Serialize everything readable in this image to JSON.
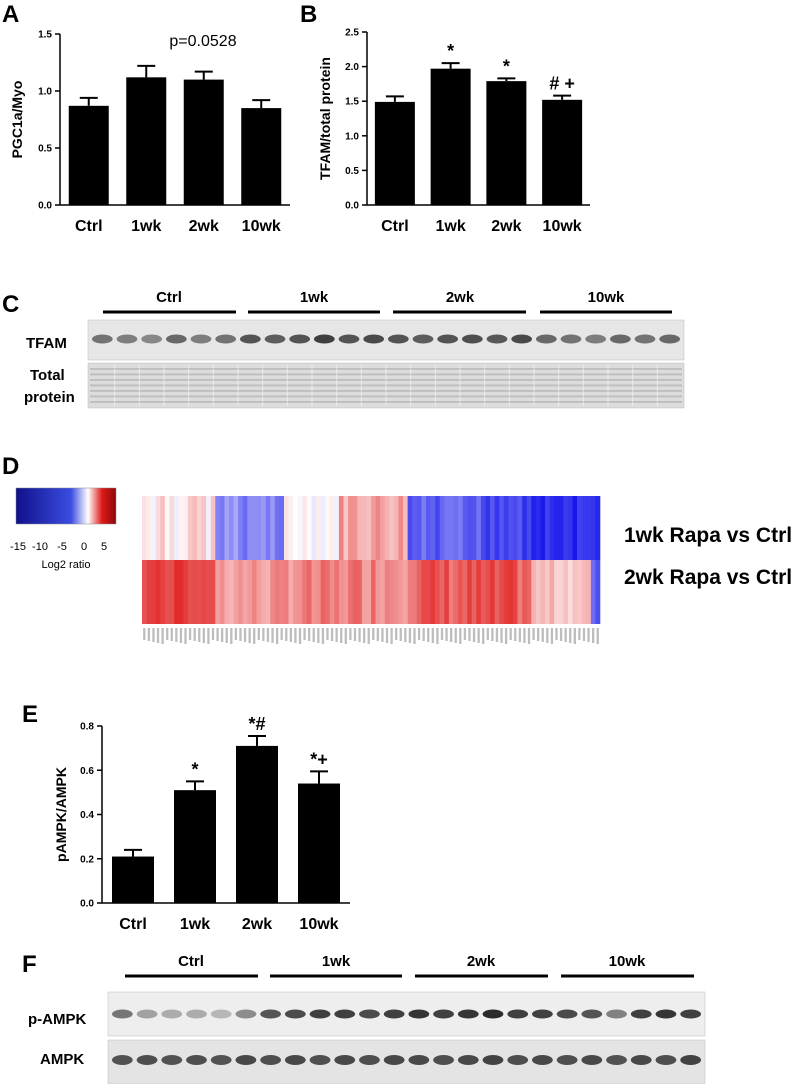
{
  "panels": {
    "A": {
      "letter": "A"
    },
    "B": {
      "letter": "B"
    },
    "C": {
      "letter": "C",
      "group_labels": [
        "Ctrl",
        "1wk",
        "2wk",
        "10wk"
      ],
      "row_labels": [
        "TFAM",
        "Total",
        "protein"
      ]
    },
    "D": {
      "letter": "D",
      "scale_ticks": [
        "-15",
        "-10",
        "-5",
        "0",
        "5"
      ],
      "scale_title": "Log2 ratio",
      "row_labels": [
        "1wk Rapa vs Ctrl",
        "2wk Rapa vs Ctrl"
      ]
    },
    "E": {
      "letter": "E"
    },
    "F": {
      "letter": "F",
      "group_labels": [
        "Ctrl",
        "1wk",
        "2wk",
        "10wk"
      ],
      "row_labels": [
        "p-AMPK",
        "AMPK"
      ]
    }
  },
  "chart_data": [
    {
      "id": "A",
      "type": "bar",
      "categories": [
        "Ctrl",
        "1wk",
        "2wk",
        "10wk"
      ],
      "values": [
        0.87,
        1.12,
        1.1,
        0.85
      ],
      "errors": [
        0.07,
        0.1,
        0.07,
        0.07
      ],
      "ylabel": "PGC1a/Myo",
      "ylim": [
        0,
        1.5
      ],
      "yticks": [
        "0.0",
        "0.5",
        "1.0",
        "1.5"
      ],
      "annotations": [
        "",
        "",
        "",
        ""
      ],
      "note": "p=0.0528"
    },
    {
      "id": "B",
      "type": "bar",
      "categories": [
        "Ctrl",
        "1wk",
        "2wk",
        "10wk"
      ],
      "values": [
        1.49,
        1.97,
        1.79,
        1.52
      ],
      "errors": [
        0.08,
        0.08,
        0.04,
        0.06
      ],
      "ylabel": "TFAM/total protein",
      "ylim": [
        0,
        2.5
      ],
      "yticks": [
        "0.0",
        "0.5",
        "1.0",
        "1.5",
        "2.0",
        "2.5"
      ],
      "annotations": [
        "",
        "*",
        "*",
        "# +"
      ],
      "note": ""
    },
    {
      "id": "E",
      "type": "bar",
      "categories": [
        "Ctrl",
        "1wk",
        "2wk",
        "10wk"
      ],
      "values": [
        0.21,
        0.51,
        0.71,
        0.54
      ],
      "errors": [
        0.03,
        0.04,
        0.045,
        0.055
      ],
      "ylabel": "pAMPK/AMPK",
      "ylim": [
        0,
        0.8
      ],
      "yticks": [
        "0.0",
        "0.2",
        "0.4",
        "0.6",
        "0.8"
      ],
      "annotations": [
        "",
        "*",
        "*#",
        "*+"
      ],
      "note": ""
    }
  ]
}
